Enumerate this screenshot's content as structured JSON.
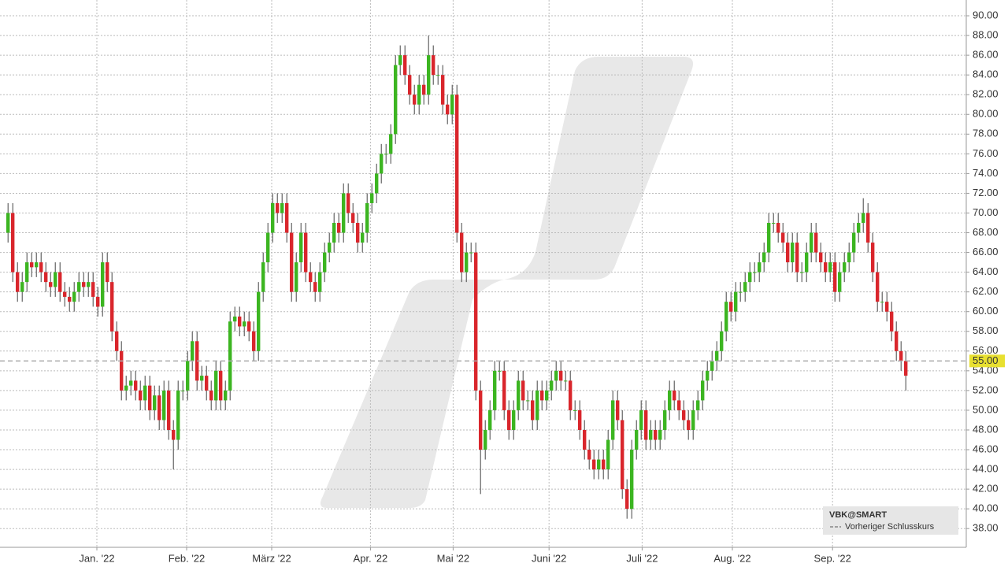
{
  "chart_data": {
    "type": "candlestick",
    "series": [
      {
        "name": "VBK@SMART",
        "up_color": "#3cb521",
        "down_color": "#d9262c",
        "open": [
          68,
          70,
          64,
          62,
          63,
          65,
          64.5,
          65,
          64,
          63,
          62.5,
          64,
          62,
          61.5,
          61,
          62,
          63,
          62.5,
          63,
          61.5,
          60.5,
          65,
          63,
          58,
          56,
          52,
          52.5,
          53,
          52,
          51,
          52.5,
          50,
          51.5,
          49,
          52,
          48,
          47,
          52,
          52,
          55,
          57,
          53,
          53.5,
          52,
          51,
          54,
          51,
          52,
          59,
          59.5,
          58.5,
          59,
          58,
          56,
          62,
          65,
          68,
          71,
          70,
          71,
          68,
          62,
          65,
          68,
          64,
          63,
          62,
          64,
          66,
          67,
          69,
          68,
          72,
          70,
          69,
          67,
          68,
          71,
          72,
          74,
          76,
          76,
          78,
          85,
          86,
          84,
          82,
          81,
          83,
          82,
          86,
          84,
          84,
          81,
          80,
          82,
          68,
          64,
          66,
          66,
          52,
          46,
          48,
          50,
          54,
          54,
          50,
          48,
          50,
          53,
          51,
          51,
          49,
          52,
          51,
          52,
          53,
          54,
          53,
          53,
          50,
          50,
          48,
          46,
          45,
          44,
          45,
          44,
          47,
          51,
          49,
          42,
          40,
          46,
          48,
          50,
          47,
          48,
          47,
          48,
          50,
          52,
          51,
          50,
          49,
          48,
          50,
          51,
          53,
          54,
          55,
          56,
          58,
          61,
          60,
          62,
          62,
          63,
          64,
          64,
          65,
          66,
          69,
          69,
          68,
          67,
          65,
          67,
          64,
          64,
          66,
          68,
          66,
          65,
          64,
          65,
          62,
          64,
          65,
          66,
          68,
          69,
          70,
          67,
          64,
          61,
          61,
          60,
          58,
          56,
          55
        ],
        "high": [
          71,
          71,
          65,
          64,
          66,
          66,
          66,
          66,
          65,
          64,
          65,
          65,
          63,
          62.5,
          63,
          64,
          64,
          64,
          64,
          62.5,
          66,
          66,
          64,
          59,
          57,
          53.5,
          54,
          54,
          53,
          53.5,
          53.5,
          52.5,
          52.5,
          53,
          53,
          49,
          53,
          53,
          56,
          58,
          58,
          54.5,
          54.5,
          53,
          55,
          55,
          53,
          60,
          60.5,
          60.5,
          60,
          60,
          59,
          63,
          66,
          69,
          72,
          72,
          72,
          72,
          69,
          66,
          69,
          69,
          65,
          64,
          65,
          67,
          68,
          70,
          70,
          73,
          73,
          71,
          70,
          69,
          72,
          73,
          75,
          77,
          77,
          79,
          86,
          87,
          87,
          85,
          83,
          84,
          84,
          88,
          87,
          85,
          85,
          82,
          83,
          83,
          69,
          67,
          67,
          67,
          53,
          49,
          51,
          55,
          55,
          55,
          51,
          51,
          54,
          54,
          52,
          52,
          53,
          53,
          53,
          54,
          55,
          55,
          54,
          54,
          51,
          51,
          49,
          47,
          46,
          46,
          46,
          48,
          52,
          52,
          50,
          43,
          47,
          49,
          51,
          51,
          49,
          49,
          49,
          51,
          53,
          53,
          52,
          51,
          50,
          51,
          52,
          54,
          55,
          56,
          57,
          59,
          62,
          62,
          63,
          63,
          64,
          65,
          65,
          66,
          67,
          70,
          70,
          70,
          69,
          68,
          68,
          68,
          65,
          67,
          69,
          69,
          67,
          66,
          66,
          66,
          65,
          66,
          67,
          69,
          70,
          71.5,
          71,
          68,
          65,
          62,
          62,
          61,
          59,
          57,
          56
        ],
        "low": [
          67,
          63,
          61,
          61,
          62,
          63.5,
          63.5,
          63,
          62,
          61.5,
          61.5,
          61,
          60.5,
          60,
          60,
          61,
          61.5,
          61.5,
          60.5,
          59.5,
          59.5,
          62,
          57,
          55,
          51,
          51,
          51.5,
          51,
          50,
          50,
          49,
          49,
          48,
          48,
          47,
          44,
          46,
          51,
          51,
          54,
          52,
          52,
          51,
          50,
          50,
          50,
          50,
          51,
          58,
          57.5,
          57.5,
          57,
          55,
          55,
          61,
          64,
          67,
          69,
          69,
          67,
          61,
          61,
          64,
          63,
          62,
          61,
          61,
          63,
          65,
          66,
          67,
          67,
          69,
          68,
          66,
          66,
          67,
          70,
          71,
          73,
          75,
          75,
          77,
          84,
          83,
          81,
          80,
          80,
          81,
          81,
          83,
          83,
          80,
          79,
          79,
          67,
          63,
          63,
          65,
          51,
          41.5,
          45,
          47,
          49,
          53,
          49,
          47,
          47,
          49,
          50,
          50,
          48,
          48,
          50,
          50,
          51,
          52,
          52,
          52,
          49,
          49,
          47,
          45,
          44,
          43,
          43,
          43,
          43,
          46,
          48,
          41,
          39,
          39,
          45,
          47,
          46,
          46,
          46,
          46,
          47,
          49,
          50,
          49,
          48,
          47,
          47,
          49,
          50,
          52,
          53,
          54,
          55,
          57,
          59,
          59,
          61,
          61,
          62,
          63,
          63,
          64,
          65,
          68,
          67,
          66,
          64,
          64,
          63,
          63,
          63,
          65,
          65,
          64,
          63,
          63,
          61,
          61,
          63,
          64,
          65,
          67,
          68,
          66,
          63,
          60,
          60,
          59,
          57,
          55,
          54,
          52
        ],
        "close": [
          70,
          64,
          62,
          63,
          65,
          64.5,
          65,
          64,
          63,
          62.5,
          64,
          62,
          61.5,
          61,
          62,
          63,
          62.5,
          63,
          61.5,
          60.5,
          65,
          63,
          58,
          56,
          52,
          52.5,
          53,
          52,
          51,
          52.5,
          50,
          51.5,
          49,
          52,
          48,
          47,
          52,
          52,
          55,
          57,
          53,
          53.5,
          52,
          51,
          54,
          51,
          52,
          59,
          59.5,
          58.5,
          59,
          58,
          56,
          62,
          65,
          68,
          71,
          70,
          71,
          68,
          62,
          65,
          68,
          64,
          63,
          62,
          64,
          66,
          67,
          69,
          68,
          72,
          70,
          69,
          67,
          68,
          71,
          72,
          74,
          76,
          76,
          78,
          85,
          86,
          84,
          82,
          81,
          83,
          82,
          86,
          84,
          84,
          81,
          80,
          82,
          68,
          64,
          66,
          66,
          52,
          46,
          48,
          50,
          54,
          54,
          50,
          48,
          50,
          53,
          51,
          51,
          49,
          52,
          51,
          52,
          53,
          54,
          53,
          53,
          50,
          50,
          48,
          46,
          45,
          44,
          45,
          44,
          47,
          51,
          49,
          42,
          40,
          46,
          48,
          50,
          47,
          48,
          47,
          48,
          50,
          52,
          51,
          50,
          49,
          48,
          50,
          51,
          53,
          54,
          55,
          56,
          58,
          61,
          60,
          62,
          62,
          63,
          64,
          64,
          65,
          66,
          69,
          69,
          68,
          67,
          65,
          67,
          64,
          64,
          66,
          68,
          66,
          65,
          64,
          65,
          62,
          64,
          65,
          66,
          68,
          69,
          70,
          67,
          64,
          61,
          61,
          60,
          58,
          56,
          55,
          53.5
        ]
      }
    ],
    "reference_line": {
      "value": 55,
      "label": "55.00",
      "name": "Vorheriger Schlusskurs",
      "color": "#aaaaaa"
    },
    "xlim": [
      -1.7,
      202.8
    ],
    "xticks": [
      {
        "value": 18.8,
        "label": "Jan. '22"
      },
      {
        "value": 37.8,
        "label": "Feb. '22"
      },
      {
        "value": 55.8,
        "label": "März '22"
      },
      {
        "value": 76.7,
        "label": "Apr. '22"
      },
      {
        "value": 94.2,
        "label": "Mai '22"
      },
      {
        "value": 114.5,
        "label": "Juni '22"
      },
      {
        "value": 134.2,
        "label": "Juli '22"
      },
      {
        "value": 153.3,
        "label": "Aug. '22"
      },
      {
        "value": 174.5,
        "label": "Sep. '22"
      }
    ],
    "ylim": [
      36.1,
      91.6
    ],
    "yticks": [
      {
        "value": 38,
        "label": "38.00"
      },
      {
        "value": 40,
        "label": "40.00"
      },
      {
        "value": 42,
        "label": "42.00"
      },
      {
        "value": 44,
        "label": "44.00"
      },
      {
        "value": 46,
        "label": "46.00"
      },
      {
        "value": 48,
        "label": "48.00"
      },
      {
        "value": 50,
        "label": "50.00"
      },
      {
        "value": 52,
        "label": "52.00"
      },
      {
        "value": 54,
        "label": "54.00"
      },
      {
        "value": 56,
        "label": "56.00"
      },
      {
        "value": 58,
        "label": "58.00"
      },
      {
        "value": 60,
        "label": "60.00"
      },
      {
        "value": 62,
        "label": "62.00"
      },
      {
        "value": 64,
        "label": "64.00"
      },
      {
        "value": 66,
        "label": "66.00"
      },
      {
        "value": 68,
        "label": "68.00"
      },
      {
        "value": 70,
        "label": "70.00"
      },
      {
        "value": 72,
        "label": "72.00"
      },
      {
        "value": 74,
        "label": "74.00"
      },
      {
        "value": 76,
        "label": "76.00"
      },
      {
        "value": 78,
        "label": "78.00"
      },
      {
        "value": 80,
        "label": "80.00"
      },
      {
        "value": 82,
        "label": "82.00"
      },
      {
        "value": 84,
        "label": "84.00"
      },
      {
        "value": 86,
        "label": "86.00"
      },
      {
        "value": 88,
        "label": "88.00"
      },
      {
        "value": 90,
        "label": "90.00"
      }
    ],
    "grid": true
  }
}
